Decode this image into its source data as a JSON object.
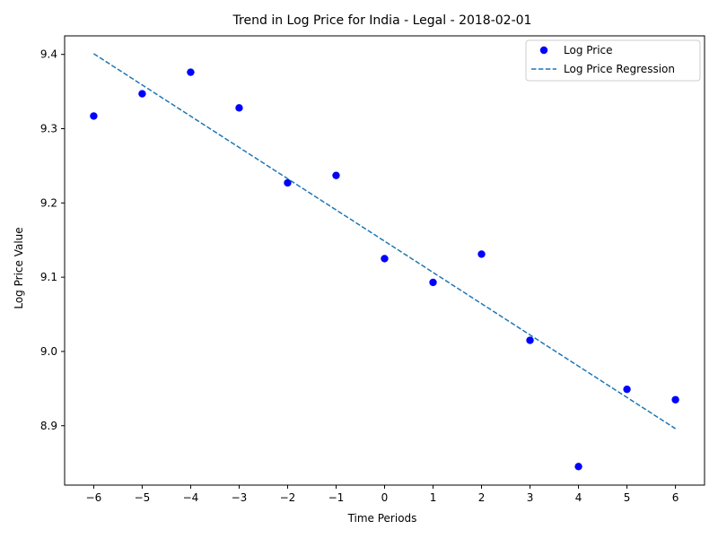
{
  "chart_data": {
    "type": "scatter",
    "title": "Trend in Log Price for India - Legal - 2018-02-01",
    "xlabel": "Time Periods",
    "ylabel": "Log Price Value",
    "xlim": [
      -6.6,
      6.6
    ],
    "ylim": [
      8.82,
      9.425
    ],
    "xticks": [
      -6,
      -5,
      -4,
      -3,
      -2,
      -1,
      0,
      1,
      2,
      3,
      4,
      5,
      6
    ],
    "yticks": [
      8.9,
      9.0,
      9.1,
      9.2,
      9.3,
      9.4
    ],
    "grid": false,
    "legend_position": "top-right",
    "series": [
      {
        "name": "Log Price",
        "kind": "scatter",
        "color": "#0000ff",
        "x": [
          -6,
          -5,
          -4,
          -3,
          -2,
          -1,
          0,
          1,
          2,
          3,
          4,
          5,
          6
        ],
        "y": [
          9.317,
          9.347,
          9.376,
          9.328,
          9.227,
          9.237,
          9.125,
          9.093,
          9.131,
          9.015,
          8.845,
          8.949,
          8.935
        ]
      },
      {
        "name": "Log Price Regression",
        "kind": "line",
        "style": "dashed",
        "color": "#1f77b4",
        "x": [
          -6,
          6
        ],
        "y": [
          9.401,
          8.896
        ]
      }
    ]
  }
}
